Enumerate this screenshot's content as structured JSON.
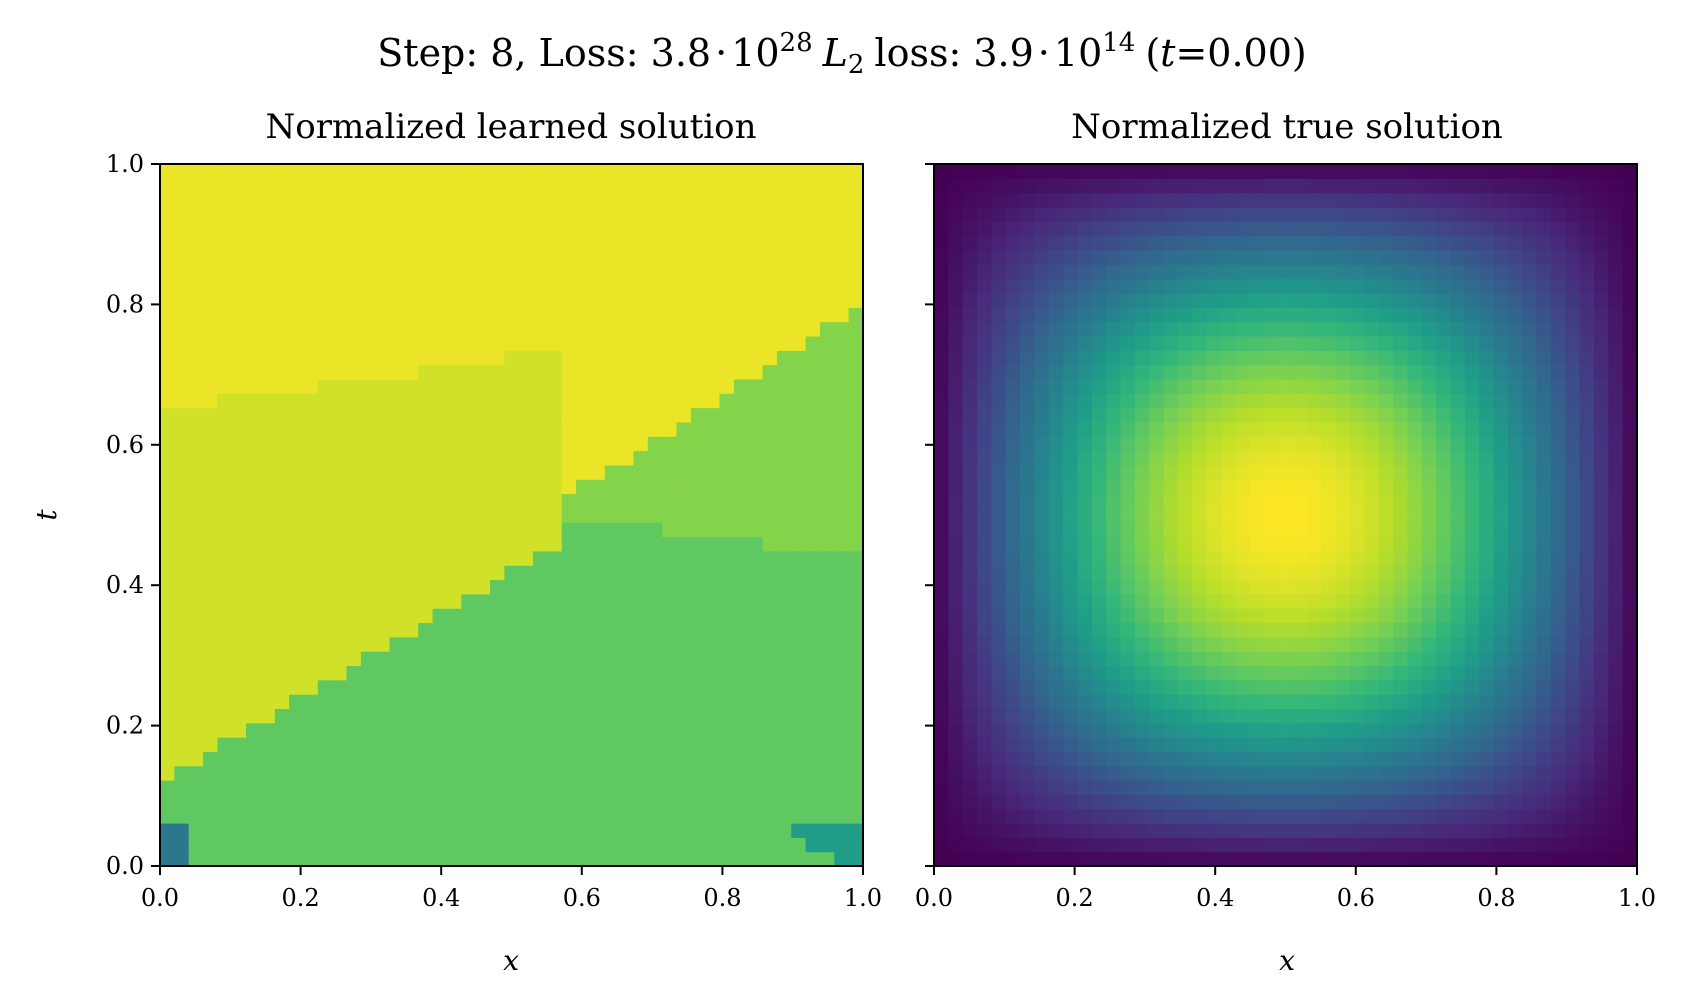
{
  "figure": {
    "suptitle": {
      "step_label": "Step:",
      "step_value": "8,",
      "loss_label": "Loss:",
      "loss_mantissa": "3.8",
      "loss_exponent": "28",
      "l2_symbol": "L",
      "l2_subscript": "2",
      "l2_label": "loss:",
      "l2_mantissa": "3.9",
      "l2_exponent": "14",
      "time_open": "(",
      "time_symbol": "t",
      "time_value": "=0.00)",
      "multiply_dot": "·",
      "power_base": "10"
    }
  },
  "chart_data": [
    {
      "type": "heatmap",
      "title": "Normalized learned solution",
      "xlabel": "x",
      "ylabel": "t",
      "xlim": [
        0,
        1
      ],
      "ylim": [
        0,
        1
      ],
      "xticks": [
        "0.0",
        "0.2",
        "0.4",
        "0.6",
        "0.8",
        "1.0"
      ],
      "yticks": [
        "0.0",
        "0.2",
        "0.4",
        "0.6",
        "0.8",
        "1.0"
      ],
      "colormap": "viridis",
      "grid": false,
      "grid_resolution": 49,
      "region_values": {
        "upper_band": 0.97,
        "left_band": 0.93,
        "lower_band": 0.75,
        "right_wedge": 0.81,
        "bottom_left_corner": 0.4,
        "bottom_right_corner": 0.55
      },
      "boundaries": {
        "upper_lower_edge_t_at_x0": 0.65,
        "upper_lower_edge_t_at_x1": 0.8,
        "left_lower_edge_t_at_x0": 0.12,
        "left_lower_edge_t_at_x1": 0.72,
        "right_wedge_lower_t_at_x1": 0.44,
        "right_wedge_join_x": 0.57
      }
    },
    {
      "type": "heatmap",
      "title": "Normalized true solution",
      "xlabel": "x",
      "ylabel": "",
      "xlim": [
        0,
        1
      ],
      "ylim": [
        0,
        1
      ],
      "xticks": [
        "0.0",
        "0.2",
        "0.4",
        "0.6",
        "0.8",
        "1.0"
      ],
      "colormap": "viridis",
      "grid": false,
      "grid_resolution": 49,
      "function": "sin(pi*x)*sin(pi*t)",
      "vmin": 0,
      "vmax": 1,
      "peak": [
        0.5,
        0.5
      ]
    }
  ],
  "colors": {
    "viridis_stops": [
      "#440154",
      "#482878",
      "#3e4989",
      "#31688e",
      "#26828e",
      "#1f9e89",
      "#35b779",
      "#6ece58",
      "#b5de2b",
      "#fde725"
    ]
  }
}
